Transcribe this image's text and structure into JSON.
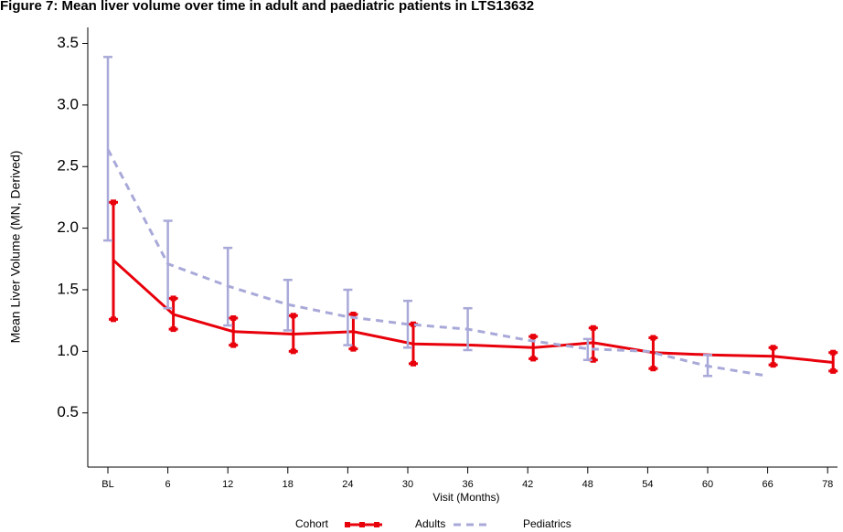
{
  "chart_data": {
    "type": "line",
    "title": "Figure 7: Mean liver volume over time in adult and paediatric patients in LTS13632",
    "x_label": "Visit (Months)",
    "y_label": "Mean Liver Volume (MN, Derived)",
    "categories": [
      "BL",
      "6",
      "12",
      "18",
      "24",
      "30",
      "36",
      "42",
      "48",
      "54",
      "60",
      "66",
      "78"
    ],
    "ylim": [
      0.06,
      3.63
    ],
    "yticks": [
      0.5,
      {
        "value": 1,
        "label": "1.0"
      },
      1.5,
      {
        "value": 2,
        "label": "2.0"
      },
      2.5,
      {
        "value": 3,
        "label": "3.0"
      },
      3.5
    ],
    "legend_title": "Cohort",
    "legend": "bottom",
    "series": [
      {
        "name": "Adults",
        "color": "#e8000b",
        "style": "solid",
        "values": [
          1.74,
          1.3,
          1.16,
          1.14,
          1.16,
          1.06,
          1.05,
          1.03,
          1.07,
          0.99,
          0.97,
          0.96,
          0.91
        ],
        "lower": [
          1.26,
          1.18,
          1.05,
          1.0,
          1.02,
          0.9,
          null,
          0.94,
          0.93,
          0.86,
          null,
          0.89,
          0.84
        ],
        "upper": [
          2.21,
          1.43,
          1.27,
          1.29,
          1.3,
          1.22,
          null,
          1.12,
          1.19,
          1.11,
          null,
          1.03,
          0.99
        ]
      },
      {
        "name": "Pediatrics",
        "color": "#a9a9d9",
        "style": "dashed",
        "values": [
          2.64,
          1.71,
          1.53,
          1.38,
          1.28,
          1.22,
          1.18,
          1.09,
          1.02,
          1.0,
          0.88,
          0.8,
          null
        ],
        "lower": [
          1.9,
          1.35,
          1.21,
          1.17,
          1.05,
          1.03,
          1.01,
          null,
          0.93,
          null,
          0.8,
          null,
          null
        ],
        "upper": [
          3.39,
          2.06,
          1.84,
          1.58,
          1.5,
          1.41,
          1.35,
          null,
          1.1,
          null,
          0.97,
          null,
          null
        ]
      }
    ]
  }
}
